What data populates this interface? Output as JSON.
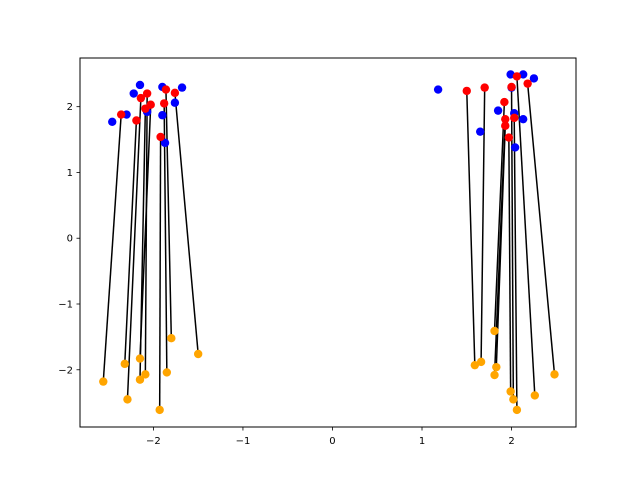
{
  "chart_data": {
    "type": "scatter",
    "title": "",
    "xlabel": "",
    "ylabel": "",
    "xlim": [
      -2.82,
      2.72
    ],
    "ylim": [
      -2.87,
      2.74
    ],
    "grid": false,
    "legend": "none",
    "colors": {
      "blue": "#0000ff",
      "red": "#ff0000",
      "orange": "#ffa500",
      "segment": "#000000",
      "axes": "#000000"
    },
    "x_ticks": [
      {
        "value": -2,
        "label": "−2"
      },
      {
        "value": -1,
        "label": "−1"
      },
      {
        "value": 0,
        "label": "0"
      },
      {
        "value": 1,
        "label": "1"
      },
      {
        "value": 2,
        "label": "2"
      }
    ],
    "y_ticks": [
      {
        "value": -2,
        "label": "−2"
      },
      {
        "value": -1,
        "label": "−1"
      },
      {
        "value": 0,
        "label": "0"
      },
      {
        "value": 1,
        "label": "1"
      },
      {
        "value": 2,
        "label": "2"
      }
    ],
    "series": [
      {
        "color": "blue",
        "points": [
          [
            -2.46,
            1.77
          ],
          [
            -2.3,
            1.88
          ],
          [
            -2.22,
            2.2
          ],
          [
            -2.15,
            2.33
          ],
          [
            -2.07,
            1.92
          ],
          [
            -1.9,
            2.3
          ],
          [
            -1.9,
            1.87
          ],
          [
            -1.87,
            1.45
          ],
          [
            -1.76,
            2.06
          ],
          [
            -1.68,
            2.29
          ],
          [
            1.18,
            2.26
          ],
          [
            1.65,
            1.62
          ],
          [
            1.85,
            1.94
          ],
          [
            1.99,
            2.49
          ],
          [
            2.0,
            2.29
          ],
          [
            2.03,
            1.9
          ],
          [
            2.04,
            1.38
          ],
          [
            2.13,
            2.49
          ],
          [
            2.13,
            1.81
          ],
          [
            2.25,
            2.43
          ]
        ]
      },
      {
        "color": "red",
        "points": [
          [
            -2.36,
            1.88
          ],
          [
            -2.19,
            1.79
          ],
          [
            -2.14,
            2.13
          ],
          [
            -2.07,
            2.2
          ],
          [
            -2.09,
            1.97
          ],
          [
            -2.03,
            2.03
          ],
          [
            -1.92,
            1.54
          ],
          [
            -1.88,
            2.05
          ],
          [
            -1.86,
            2.26
          ],
          [
            -1.76,
            2.21
          ],
          [
            1.5,
            2.24
          ],
          [
            1.7,
            2.29
          ],
          [
            1.92,
            2.07
          ],
          [
            1.93,
            1.81
          ],
          [
            1.93,
            1.71
          ],
          [
            1.97,
            1.53
          ],
          [
            2.0,
            2.3
          ],
          [
            2.03,
            1.83
          ],
          [
            2.06,
            2.46
          ],
          [
            2.18,
            2.35
          ]
        ]
      },
      {
        "color": "orange",
        "points": [
          [
            -2.56,
            -2.18
          ],
          [
            -2.32,
            -1.91
          ],
          [
            -2.29,
            -2.45
          ],
          [
            -2.15,
            -1.83
          ],
          [
            -2.15,
            -2.15
          ],
          [
            -2.09,
            -2.07
          ],
          [
            -1.93,
            -2.61
          ],
          [
            -1.85,
            -2.04
          ],
          [
            -1.8,
            -1.52
          ],
          [
            -1.5,
            -1.76
          ],
          [
            1.59,
            -1.93
          ],
          [
            1.66,
            -1.88
          ],
          [
            1.81,
            -1.41
          ],
          [
            1.81,
            -2.08
          ],
          [
            1.83,
            -1.96
          ],
          [
            1.99,
            -2.33
          ],
          [
            2.02,
            -2.45
          ],
          [
            2.06,
            -2.61
          ],
          [
            2.26,
            -2.39
          ],
          [
            2.48,
            -2.07
          ]
        ]
      }
    ],
    "segments": [
      {
        "from": [
          -2.36,
          1.88
        ],
        "to": [
          -2.56,
          -2.18
        ]
      },
      {
        "from": [
          -2.19,
          1.79
        ],
        "to": [
          -2.32,
          -1.91
        ]
      },
      {
        "from": [
          -2.14,
          2.13
        ],
        "to": [
          -2.29,
          -2.45
        ]
      },
      {
        "from": [
          -2.09,
          1.97
        ],
        "to": [
          -2.15,
          -2.15
        ]
      },
      {
        "from": [
          -2.07,
          2.2
        ],
        "to": [
          -2.09,
          -2.07
        ]
      },
      {
        "from": [
          -2.03,
          2.03
        ],
        "to": [
          -2.15,
          -1.83
        ]
      },
      {
        "from": [
          -1.92,
          1.54
        ],
        "to": [
          -1.93,
          -2.61
        ]
      },
      {
        "from": [
          -1.88,
          2.05
        ],
        "to": [
          -1.85,
          -2.04
        ]
      },
      {
        "from": [
          -1.86,
          2.26
        ],
        "to": [
          -1.8,
          -1.52
        ]
      },
      {
        "from": [
          -1.76,
          2.21
        ],
        "to": [
          -1.5,
          -1.76
        ]
      },
      {
        "from": [
          1.5,
          2.24
        ],
        "to": [
          1.59,
          -1.93
        ]
      },
      {
        "from": [
          1.7,
          2.29
        ],
        "to": [
          1.66,
          -1.88
        ]
      },
      {
        "from": [
          1.92,
          2.07
        ],
        "to": [
          1.81,
          -1.41
        ]
      },
      {
        "from": [
          1.93,
          1.81
        ],
        "to": [
          1.81,
          -2.08
        ]
      },
      {
        "from": [
          1.93,
          1.71
        ],
        "to": [
          1.83,
          -1.96
        ]
      },
      {
        "from": [
          1.97,
          1.53
        ],
        "to": [
          1.99,
          -2.33
        ]
      },
      {
        "from": [
          2.0,
          2.3
        ],
        "to": [
          2.02,
          -2.45
        ]
      },
      {
        "from": [
          2.03,
          1.83
        ],
        "to": [
          2.06,
          -2.61
        ]
      },
      {
        "from": [
          2.06,
          2.46
        ],
        "to": [
          2.26,
          -2.39
        ]
      },
      {
        "from": [
          2.18,
          2.35
        ],
        "to": [
          2.48,
          -2.07
        ]
      }
    ]
  }
}
